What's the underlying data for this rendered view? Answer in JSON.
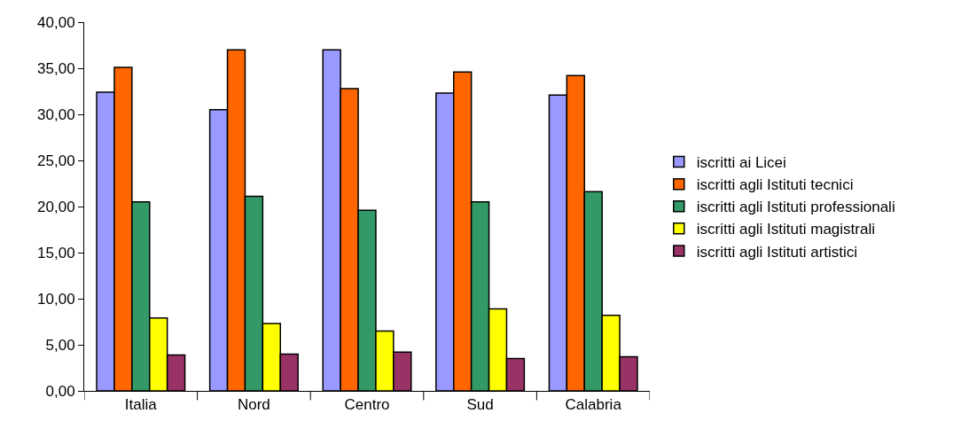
{
  "chart_data": {
    "type": "bar",
    "categories": [
      "Italia",
      "Nord",
      "Centro",
      "Sud",
      "Calabria"
    ],
    "series": [
      {
        "name": "iscritti ai Licei",
        "color": "#9999ff",
        "values": [
          32.4,
          30.5,
          37.0,
          32.3,
          32.1
        ]
      },
      {
        "name": "iscritti agli Istituti tecnici",
        "color": "#ff6600",
        "values": [
          35.1,
          37.0,
          32.8,
          34.6,
          34.2
        ]
      },
      {
        "name": "iscritti agli Istituti professionali",
        "color": "#339966",
        "values": [
          20.5,
          21.1,
          19.6,
          20.5,
          21.6
        ]
      },
      {
        "name": "iscritti agli Istituti magistrali",
        "color": "#ffff00",
        "values": [
          7.9,
          7.3,
          6.5,
          8.9,
          8.2
        ]
      },
      {
        "name": "iscritti agli Istituti artistici",
        "color": "#993366",
        "values": [
          3.9,
          4.0,
          4.2,
          3.5,
          3.7
        ]
      }
    ],
    "ylim": [
      0,
      40
    ],
    "yticks": [
      {
        "value": 0,
        "label": "0,00"
      },
      {
        "value": 5,
        "label": "5,00"
      },
      {
        "value": 10,
        "label": "10,00"
      },
      {
        "value": 15,
        "label": "15,00"
      },
      {
        "value": 20,
        "label": "20,00"
      },
      {
        "value": 25,
        "label": "25,00"
      },
      {
        "value": 30,
        "label": "30,00"
      },
      {
        "value": 35,
        "label": "35,00"
      },
      {
        "value": 40,
        "label": "40,00"
      }
    ],
    "grid": false,
    "legend": "right"
  }
}
